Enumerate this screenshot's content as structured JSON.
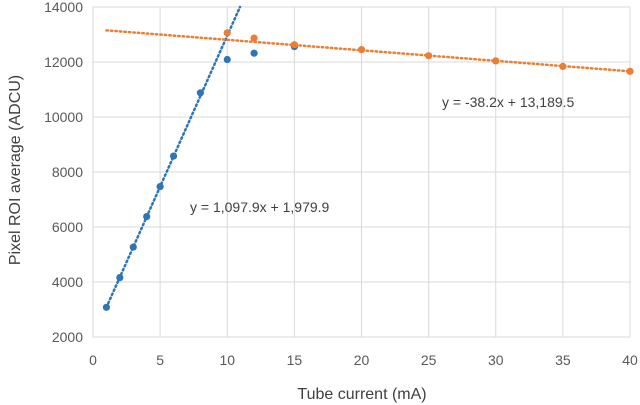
{
  "chart_data": {
    "type": "scatter",
    "title": "",
    "xlabel": "Tube current (mA)",
    "ylabel": "Pixel ROI average (ADCU)",
    "xlim": [
      0,
      40
    ],
    "ylim": [
      2000,
      14000
    ],
    "xticks": [
      0,
      5,
      10,
      15,
      20,
      25,
      30,
      35,
      40
    ],
    "yticks": [
      2000,
      4000,
      6000,
      8000,
      10000,
      12000,
      14000
    ],
    "grid": true,
    "legend": "none",
    "series": [
      {
        "color": "#2e75b6",
        "points": [
          [
            1,
            3080
          ],
          [
            2,
            4160
          ],
          [
            3,
            5270
          ],
          [
            4,
            6380
          ],
          [
            5,
            7470
          ],
          [
            6,
            8580
          ],
          [
            8,
            10880
          ],
          [
            10,
            12090
          ],
          [
            12,
            12320
          ],
          [
            15,
            12560
          ]
        ],
        "trendline": {
          "slope": 1097.9,
          "intercept": 1979.9,
          "x_range": [
            1,
            11.5
          ],
          "color": "#2e75b6"
        },
        "equation": "y = 1,097.9x + 1,979.9"
      },
      {
        "color": "#ed7d31",
        "points": [
          [
            10,
            13060
          ],
          [
            12,
            12870
          ],
          [
            15,
            12630
          ],
          [
            20,
            12450
          ],
          [
            25,
            12230
          ],
          [
            30,
            12040
          ],
          [
            35,
            11840
          ],
          [
            40,
            11660
          ]
        ],
        "trendline": {
          "slope": -38.2,
          "intercept": 13189.5,
          "x_range": [
            1,
            40
          ],
          "color": "#ed7d31"
        },
        "equation": "y = -38.2x + 13,189.5"
      }
    ]
  }
}
